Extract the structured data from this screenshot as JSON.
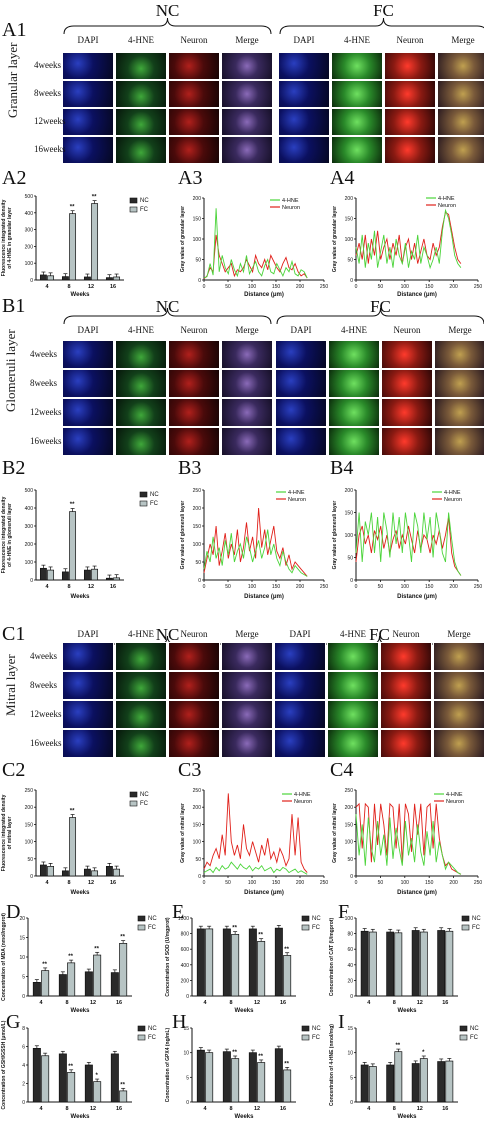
{
  "panels": {
    "A1": "A1",
    "A2": "A2",
    "A3": "A3",
    "A4": "A4",
    "B1": "B1",
    "B2": "B2",
    "B3": "B3",
    "B4": "B4",
    "C1": "C1",
    "C2": "C2",
    "C3": "C3",
    "C4": "C4",
    "D": "D",
    "E": "E",
    "F": "F",
    "G": "G",
    "H": "H",
    "I": "I"
  },
  "groups": {
    "nc": "NC",
    "fc": "FC"
  },
  "columns": [
    "DAPI",
    "4-HNE",
    "Neuron",
    "Merge"
  ],
  "rows": [
    "4weeks",
    "8weeks",
    "12weeks",
    "16weeks"
  ],
  "layers": {
    "a": "Granular layer",
    "b": "Glomeruli layer",
    "c": "Mitral layer"
  },
  "colors": {
    "nc_bar": "#2a2a2a",
    "fc_bar": "#b7c4c4",
    "hne_line": "#4bd43a",
    "neuron_line": "#e0201a"
  },
  "charts": {
    "A2": {
      "type": "bar",
      "ylabel": "Fluorescence integrated density\nof 4-HNE in granular layer",
      "xlabel": "Weeks",
      "categories": [
        "4",
        "8",
        "12",
        "16"
      ],
      "ylim": [
        0,
        500
      ],
      "yticks": [
        0,
        100,
        200,
        300,
        400,
        500
      ],
      "series": [
        {
          "name": "NC",
          "values": [
            30,
            20,
            18,
            14
          ]
        },
        {
          "name": "FC",
          "values": [
            25,
            395,
            455,
            18
          ]
        }
      ],
      "sig": [
        "",
        "**",
        "**",
        ""
      ],
      "legend": [
        "NC",
        "FC"
      ]
    },
    "B2": {
      "type": "bar",
      "ylabel": "Fluorescence integrated density\nof 4-HNE in glomeruli layer",
      "xlabel": "Weeks",
      "categories": [
        "4",
        "8",
        "12",
        "16"
      ],
      "ylim": [
        0,
        500
      ],
      "yticks": [
        0,
        100,
        200,
        300,
        400,
        500
      ],
      "series": [
        {
          "name": "NC",
          "values": [
            65,
            45,
            55,
            10
          ]
        },
        {
          "name": "FC",
          "values": [
            55,
            380,
            60,
            12
          ]
        }
      ],
      "sig": [
        "",
        "**",
        "",
        ""
      ],
      "legend": [
        "NC",
        "FC"
      ]
    },
    "C2": {
      "type": "bar",
      "ylabel": "Fluorescence integrated density\nof mitral layer",
      "xlabel": "Weeks",
      "categories": [
        "4",
        "8",
        "12",
        "16"
      ],
      "ylim": [
        0,
        250
      ],
      "yticks": [
        0,
        50,
        100,
        150,
        200,
        250
      ],
      "series": [
        {
          "name": "NC",
          "values": [
            32,
            15,
            20,
            28
          ]
        },
        {
          "name": "FC",
          "values": [
            28,
            170,
            15,
            20
          ]
        }
      ],
      "sig": [
        "",
        "**",
        "",
        ""
      ],
      "legend": [
        "NC",
        "FC"
      ]
    },
    "D": {
      "type": "bar",
      "ylabel": "Concentration of MDA (nmol/mgprot)",
      "xlabel": "Weeks",
      "categories": [
        "4",
        "8",
        "12",
        "16"
      ],
      "ylim": [
        0,
        20
      ],
      "yticks": [
        0,
        5,
        10,
        15,
        20
      ],
      "series": [
        {
          "name": "NC",
          "values": [
            3.5,
            5.5,
            6.2,
            6.0
          ]
        },
        {
          "name": "FC",
          "values": [
            6.5,
            8.5,
            10.5,
            13.5
          ]
        }
      ],
      "sig": [
        "**",
        "**",
        "**",
        "**"
      ],
      "legend": [
        "NC",
        "FC"
      ]
    },
    "E": {
      "type": "bar",
      "ylabel": "Concentration of SOD (U/mgprot)",
      "xlabel": "Weeks",
      "categories": [
        "4",
        "8",
        "12",
        "16"
      ],
      "ylim": [
        0,
        1000
      ],
      "yticks": [
        0,
        200,
        400,
        600,
        800,
        1000
      ],
      "series": [
        {
          "name": "NC",
          "values": [
            860,
            860,
            860,
            870
          ]
        },
        {
          "name": "FC",
          "values": [
            860,
            790,
            700,
            520
          ]
        }
      ],
      "sig": [
        "",
        "**",
        "**",
        "**"
      ],
      "legend": [
        "NC",
        "FC"
      ]
    },
    "F": {
      "type": "bar",
      "ylabel": "Concentration of CAT (U/mgprot)",
      "xlabel": "Weeks",
      "categories": [
        "4",
        "8",
        "12",
        "16"
      ],
      "ylim": [
        0,
        100
      ],
      "yticks": [
        0,
        20,
        40,
        60,
        80,
        100
      ],
      "series": [
        {
          "name": "NC",
          "values": [
            83,
            82,
            84,
            84
          ]
        },
        {
          "name": "FC",
          "values": [
            82,
            81,
            82,
            83
          ]
        }
      ],
      "sig": [
        "",
        "",
        "",
        ""
      ],
      "legend": [
        "NC",
        "FC"
      ]
    },
    "G": {
      "type": "bar",
      "ylabel": "Concentration of GSH/GSSH (μmol/L)",
      "xlabel": "Weeks",
      "categories": [
        "4",
        "8",
        "12",
        "16"
      ],
      "ylim": [
        0,
        8
      ],
      "yticks": [
        0,
        2,
        4,
        6,
        8
      ],
      "series": [
        {
          "name": "NC",
          "values": [
            5.8,
            5.2,
            4.0,
            5.2
          ]
        },
        {
          "name": "FC",
          "values": [
            5.0,
            3.2,
            2.2,
            1.2
          ]
        }
      ],
      "sig": [
        "",
        "**",
        "*",
        "**"
      ],
      "legend": [
        "NC",
        "FC"
      ]
    },
    "H": {
      "type": "bar",
      "ylabel": "Concentration of GPX4 (ng/mL)",
      "xlabel": "Weeks",
      "categories": [
        "4",
        "8",
        "12",
        "16"
      ],
      "ylim": [
        0,
        15
      ],
      "yticks": [
        0,
        5,
        10,
        15
      ],
      "series": [
        {
          "name": "NC",
          "values": [
            10.5,
            10.2,
            10.0,
            10.8
          ]
        },
        {
          "name": "FC",
          "values": [
            10.0,
            8.8,
            8.0,
            6.5
          ]
        }
      ],
      "sig": [
        "",
        "**",
        "**",
        "**"
      ],
      "legend": [
        "NC",
        "FC"
      ]
    },
    "I": {
      "type": "bar",
      "ylabel": "Concentration of 4-HNE (nmol/mg)",
      "xlabel": "Weeks",
      "categories": [
        "4",
        "8",
        "12",
        "16"
      ],
      "ylim": [
        0,
        15
      ],
      "yticks": [
        0,
        5,
        10,
        15
      ],
      "series": [
        {
          "name": "NC",
          "values": [
            7.5,
            7.5,
            7.8,
            8.2
          ]
        },
        {
          "name": "FC",
          "values": [
            7.2,
            10.2,
            8.8,
            8.3
          ]
        }
      ],
      "sig": [
        "",
        "**",
        "*",
        ""
      ],
      "legend": [
        "NC",
        "FC"
      ]
    },
    "A3": {
      "type": "line",
      "ylabel": "Gray value of granular layer",
      "xlabel": "Distance (μm)",
      "xlim": [
        0,
        250
      ],
      "ylim": [
        0,
        200
      ],
      "xticks": [
        0,
        50,
        100,
        150,
        200,
        250
      ],
      "yticks": [
        0,
        50,
        100,
        150,
        200
      ],
      "legend": [
        "4-HNE",
        "Neuron"
      ],
      "hne": [
        5,
        8,
        40,
        12,
        175,
        20,
        60,
        30,
        15,
        50,
        25,
        10,
        40,
        20,
        60,
        15,
        30,
        45,
        20,
        10,
        35,
        50,
        20,
        15,
        40,
        25,
        10,
        30,
        20,
        45,
        15,
        10,
        25,
        20,
        5
      ],
      "neuron": [
        3,
        10,
        30,
        20,
        110,
        60,
        40,
        20,
        30,
        40,
        10,
        25,
        20,
        30,
        50,
        35,
        20,
        60,
        40,
        30,
        50,
        25,
        60,
        45,
        30,
        20,
        40,
        55,
        30,
        25,
        40,
        20,
        10,
        15,
        5
      ]
    },
    "A4": {
      "type": "line",
      "ylabel": "Gray value of granular layer",
      "xlabel": "Distance (μm)",
      "xlim": [
        0,
        250
      ],
      "ylim": [
        0,
        200
      ],
      "xticks": [
        0,
        50,
        100,
        150,
        200,
        250
      ],
      "yticks": [
        0,
        50,
        100,
        150,
        200
      ],
      "legend": [
        "4-HNE",
        "Neuron"
      ],
      "hne": [
        80,
        40,
        110,
        30,
        90,
        50,
        120,
        30,
        70,
        110,
        40,
        80,
        30,
        100,
        60,
        40,
        90,
        30,
        70,
        50,
        110,
        40,
        80,
        60,
        30,
        50,
        80,
        40,
        120,
        170,
        150,
        110,
        60,
        40,
        30
      ],
      "neuron": [
        60,
        90,
        50,
        110,
        40,
        100,
        60,
        120,
        50,
        80,
        100,
        50,
        90,
        60,
        110,
        40,
        80,
        100,
        50,
        90,
        40,
        70,
        100,
        60,
        50,
        90,
        60,
        80,
        130,
        165,
        160,
        120,
        80,
        50,
        40
      ]
    },
    "B3": {
      "type": "line",
      "ylabel": "Gray value of glomeruli layer",
      "xlabel": "Distance (μm)",
      "xlim": [
        0,
        250
      ],
      "ylim": [
        0,
        250
      ],
      "xticks": [
        0,
        50,
        100,
        150,
        200,
        250
      ],
      "yticks": [
        0,
        50,
        100,
        150,
        200,
        250
      ],
      "legend": [
        "4-HNE",
        "Neuron"
      ],
      "hne": [
        30,
        80,
        50,
        120,
        60,
        90,
        40,
        110,
        70,
        130,
        50,
        80,
        100,
        60,
        120,
        90,
        50,
        80,
        110,
        60,
        90,
        140,
        70,
        100,
        60,
        40,
        80,
        50,
        30,
        20,
        40,
        30,
        20,
        15,
        10
      ],
      "neuron": [
        20,
        60,
        100,
        70,
        150,
        40,
        80,
        130,
        60,
        100,
        70,
        140,
        50,
        90,
        160,
        80,
        120,
        60,
        200,
        90,
        140,
        70,
        110,
        150,
        80,
        60,
        90,
        40,
        70,
        30,
        50,
        40,
        30,
        20,
        10
      ]
    },
    "B4": {
      "type": "line",
      "ylabel": "Gray value of glomeruli layer",
      "xlabel": "Distance (μm)",
      "xlim": [
        0,
        250
      ],
      "ylim": [
        0,
        200
      ],
      "xticks": [
        0,
        50,
        100,
        150,
        200,
        250
      ],
      "yticks": [
        0,
        50,
        100,
        150,
        200
      ],
      "legend": [
        "4-HNE",
        "Neuron"
      ],
      "hne": [
        60,
        150,
        40,
        130,
        100,
        150,
        60,
        140,
        40,
        150,
        110,
        50,
        150,
        80,
        140,
        60,
        150,
        100,
        40,
        150,
        120,
        60,
        150,
        90,
        140,
        50,
        150,
        110,
        60,
        40,
        150,
        90,
        40,
        20,
        10
      ],
      "neuron": [
        40,
        100,
        120,
        80,
        100,
        60,
        110,
        90,
        120,
        70,
        100,
        60,
        90,
        110,
        70,
        100,
        80,
        120,
        90,
        60,
        110,
        70,
        100,
        90,
        60,
        100,
        80,
        110,
        70,
        100,
        140,
        60,
        30,
        20,
        10
      ]
    },
    "C3": {
      "type": "line",
      "ylabel": "Gray value of mitral layer",
      "xlabel": "Distance (μm)",
      "xlim": [
        0,
        250
      ],
      "ylim": [
        0,
        250
      ],
      "xticks": [
        0,
        50,
        100,
        150,
        200,
        250
      ],
      "yticks": [
        0,
        50,
        100,
        150,
        200,
        250
      ],
      "legend": [
        "4-HNE",
        "Neuron"
      ],
      "hne": [
        10,
        15,
        20,
        10,
        25,
        15,
        30,
        20,
        25,
        40,
        30,
        20,
        35,
        25,
        20,
        30,
        15,
        25,
        20,
        30,
        15,
        20,
        25,
        10,
        20,
        15,
        25,
        20,
        10,
        15,
        20,
        10,
        15,
        10,
        5
      ],
      "neuron": [
        20,
        40,
        30,
        60,
        80,
        50,
        120,
        60,
        240,
        100,
        60,
        90,
        50,
        150,
        80,
        60,
        100,
        70,
        40,
        90,
        60,
        110,
        50,
        70,
        40,
        80,
        60,
        30,
        50,
        180,
        60,
        170,
        40,
        20,
        10
      ]
    },
    "C4": {
      "type": "line",
      "ylabel": "Gray value of mitral layer",
      "xlabel": "Distance (μm)",
      "xlim": [
        0,
        250
      ],
      "ylim": [
        0,
        250
      ],
      "xticks": [
        0,
        50,
        100,
        150,
        200,
        250
      ],
      "yticks": [
        0,
        50,
        100,
        150,
        200,
        250
      ],
      "legend": [
        "4-HNE",
        "Neuron"
      ],
      "hne": [
        180,
        60,
        150,
        30,
        170,
        80,
        40,
        160,
        60,
        120,
        30,
        170,
        50,
        140,
        80,
        30,
        160,
        60,
        110,
        40,
        150,
        70,
        30,
        130,
        60,
        160,
        40,
        100,
        60,
        20,
        40,
        30,
        20,
        10,
        5
      ],
      "neuron": [
        200,
        210,
        80,
        210,
        200,
        40,
        210,
        90,
        210,
        150,
        60,
        210,
        200,
        80,
        210,
        40,
        210,
        180,
        70,
        210,
        120,
        210,
        60,
        200,
        210,
        80,
        210,
        110,
        60,
        30,
        40,
        20,
        15,
        10,
        5
      ]
    }
  }
}
